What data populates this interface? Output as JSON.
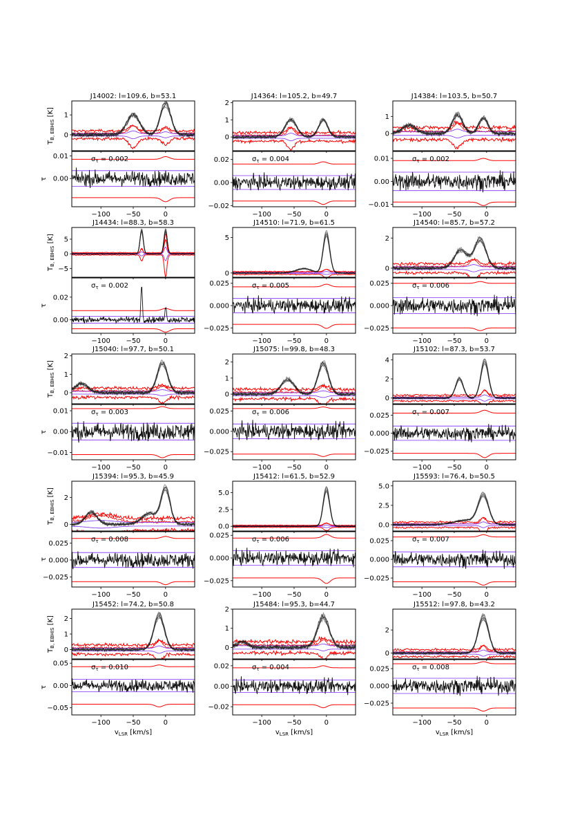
{
  "figure": {
    "xlabel_main": "v",
    "xlabel_sub": "LSR",
    "xlabel_unit": "[km/s]",
    "ylabel_top_main": "T",
    "ylabel_top_sub": "B, EBHIS",
    "ylabel_top_unit": "[K]",
    "ylabel_bottom": "τ",
    "sigma_symbol": "σ",
    "sigma_sub": "τ"
  },
  "colors": {
    "emission": "#111111",
    "envelope": "#ff0000",
    "reference": "#7b2cf5",
    "axes": "#000000"
  },
  "chart_data": [
    {
      "type": "line",
      "id": "J14002",
      "title": "J14002: l=109.6, b=53.1",
      "sigma_tau": "0.002",
      "xlim": [
        -145,
        45
      ],
      "xticks": [
        -100,
        -50,
        0
      ],
      "top": {
        "ylim": [
          -0.8,
          1.7
        ],
        "yticks": [
          0,
          1
        ],
        "yticklabels": [
          "0",
          "1"
        ],
        "peaks": [
          [
            -50,
            1.0,
            10
          ],
          [
            0,
            1.55,
            8
          ]
        ],
        "noise": 0.07,
        "redfeat": [
          [
            -50,
            0.45,
            6
          ],
          [
            0,
            0.3,
            5
          ]
        ],
        "envelope": 0.2
      },
      "bottom": {
        "ylim": [
          -0.0125,
          0.012
        ],
        "yticks": [
          0.01,
          0.0
        ],
        "yticklabels": [
          "0.01",
          "0.00"
        ],
        "noise": 0.0028,
        "envelope": 0.0085,
        "dipdepth": 0.0012,
        "ref": 0.0035
      }
    },
    {
      "type": "line",
      "id": "J14364",
      "title": "J14364: l=105.2, b=49.7",
      "sigma_tau": "0.004",
      "xlim": [
        -145,
        45
      ],
      "xticks": [
        -100,
        -50,
        0
      ],
      "top": {
        "ylim": [
          -0.8,
          2.1
        ],
        "yticks": [
          0,
          1,
          2
        ],
        "yticklabels": [
          "0",
          "1",
          "2"
        ],
        "peaks": [
          [
            -55,
            1.0,
            9
          ],
          [
            -5,
            1.0,
            7
          ]
        ],
        "noise": 0.06,
        "redfeat": [
          [
            -55,
            0.5,
            5
          ]
        ],
        "envelope": 0.25
      },
      "bottom": {
        "ylim": [
          -0.021,
          0.027
        ],
        "yticks": [
          0.02,
          0.0,
          -0.02
        ],
        "yticklabels": [
          "0.02",
          "0.00",
          "−0.02"
        ],
        "noise": 0.005,
        "envelope": 0.016,
        "dipdepth": 0.002,
        "ref": 0.006
      }
    },
    {
      "type": "line",
      "id": "J14384",
      "title": "J14384: l=103.5, b=50.7",
      "sigma_tau": "0.002",
      "xlim": [
        -145,
        45
      ],
      "xticks": [
        -100,
        -50,
        0
      ],
      "top": {
        "ylim": [
          -1.0,
          1.9
        ],
        "yticks": [
          0,
          1
        ],
        "yticklabels": [
          "0",
          "1"
        ],
        "peaks": [
          [
            -120,
            0.5,
            10
          ],
          [
            -45,
            1.1,
            8
          ],
          [
            -5,
            0.9,
            7
          ]
        ],
        "noise": 0.08,
        "redfeat": [
          [
            -45,
            0.5,
            6
          ]
        ],
        "envelope": 0.35
      },
      "bottom": {
        "ylim": [
          -0.011,
          0.013
        ],
        "yticks": [
          0.01,
          0.0,
          -0.01
        ],
        "yticklabels": [
          "0.01",
          "0.00",
          "−0.01"
        ],
        "noise": 0.003,
        "envelope": 0.009,
        "dipdepth": 0.001,
        "ref": 0.004
      }
    },
    {
      "type": "line",
      "id": "J14434",
      "title": "J14434: l=88.3, b=58.3",
      "sigma_tau": "0.002",
      "xlim": [
        -145,
        45
      ],
      "xticks": [
        -100,
        -50,
        0
      ],
      "top": {
        "ylim": [
          -8.0,
          9.0
        ],
        "yticks": [
          5,
          0,
          -5
        ],
        "yticklabels": [
          "5",
          "0",
          "−5"
        ],
        "peaks": [
          [
            -37,
            8.0,
            2.5
          ],
          [
            0,
            8.0,
            2.5
          ]
        ],
        "noise": 0.1,
        "redfeat": [
          [
            -37,
            2.0,
            2
          ],
          [
            0,
            7.5,
            2
          ]
        ],
        "envelope": 0.4
      },
      "bottom": {
        "ylim": [
          -0.012,
          0.037
        ],
        "yticks": [
          0.02,
          0.0
        ],
        "yticklabels": [
          "0.02",
          "0.00"
        ],
        "noise": 0.0022,
        "envelope": 0.008,
        "dipdepth": 0.002,
        "ref": 0.003,
        "spikes": [
          [
            -37,
            0.03
          ],
          [
            0,
            0.012
          ]
        ]
      }
    },
    {
      "type": "line",
      "id": "J14510",
      "title": "J14510: l=71.9, b=61.5",
      "sigma_tau": "0.005",
      "xlim": [
        -145,
        45
      ],
      "xticks": [
        -100,
        -50,
        0
      ],
      "top": {
        "ylim": [
          -0.6,
          6.4
        ],
        "yticks": [
          0,
          5
        ],
        "yticklabels": [
          "0",
          "5"
        ],
        "peaks": [
          [
            -35,
            0.6,
            12
          ],
          [
            0,
            5.5,
            5
          ]
        ],
        "noise": 0.06,
        "redfeat": [
          [
            0,
            0.5,
            4
          ]
        ],
        "envelope": 0.2
      },
      "bottom": {
        "ylim": [
          -0.031,
          0.031
        ],
        "yticks": [
          0.025,
          0.0,
          -0.025
        ],
        "yticklabels": [
          "0.025",
          "0.000",
          "−0.025"
        ],
        "noise": 0.0065,
        "envelope": 0.021,
        "dipdepth": 0.003,
        "ref": 0.008
      }
    },
    {
      "type": "line",
      "id": "J14540",
      "title": "J14540: l=85.7, b=57.2",
      "sigma_tau": "0.006",
      "xlim": [
        -145,
        45
      ],
      "xticks": [
        -100,
        -50,
        0
      ],
      "top": {
        "ylim": [
          -0.6,
          2.7
        ],
        "yticks": [
          0,
          2
        ],
        "yticklabels": [
          "0",
          "2"
        ],
        "peaks": [
          [
            -40,
            1.2,
            10
          ],
          [
            -10,
            1.9,
            9
          ]
        ],
        "noise": 0.07,
        "redfeat": [
          [
            -20,
            0.5,
            6
          ]
        ],
        "envelope": 0.3
      },
      "bottom": {
        "ylim": [
          -0.031,
          0.031
        ],
        "yticks": [
          0.025,
          0.0,
          -0.025
        ],
        "yticklabels": [
          "0.025",
          "0.000",
          "−0.025"
        ],
        "noise": 0.0075,
        "envelope": 0.025,
        "dipdepth": 0.002,
        "ref": 0.009
      }
    },
    {
      "type": "line",
      "id": "J15040",
      "title": "J15040: l=97.7, b=50.1",
      "sigma_tau": "0.003",
      "xlim": [
        -145,
        45
      ],
      "xticks": [
        -100,
        -50,
        0
      ],
      "top": {
        "ylim": [
          -0.6,
          2.1
        ],
        "yticks": [
          0,
          1,
          2
        ],
        "yticklabels": [
          "0",
          "1",
          "2"
        ],
        "peaks": [
          [
            -130,
            0.5,
            10
          ],
          [
            -5,
            1.6,
            8
          ]
        ],
        "noise": 0.07,
        "redfeat": [
          [
            -5,
            0.3,
            6
          ]
        ],
        "envelope": 0.25
      },
      "bottom": {
        "ylim": [
          -0.0135,
          0.013
        ],
        "yticks": [
          0.01,
          0.0,
          -0.01
        ],
        "yticklabels": [
          "0.01",
          "0.00",
          "−0.01"
        ],
        "noise": 0.0035,
        "envelope": 0.011,
        "dipdepth": 0.001,
        "ref": 0.004
      }
    },
    {
      "type": "line",
      "id": "J15075",
      "title": "J15075: l=99.8, b=48.3",
      "sigma_tau": "0.006",
      "xlim": [
        -145,
        45
      ],
      "xticks": [
        -100,
        -50,
        0
      ],
      "top": {
        "ylim": [
          -0.6,
          2.5
        ],
        "yticks": [
          0,
          1,
          2
        ],
        "yticklabels": [
          "0",
          "1",
          "2"
        ],
        "peaks": [
          [
            -60,
            0.9,
            10
          ],
          [
            -5,
            1.9,
            8
          ]
        ],
        "noise": 0.07,
        "redfeat": [
          [
            -5,
            0.4,
            6
          ]
        ],
        "envelope": 0.3
      },
      "bottom": {
        "ylim": [
          -0.035,
          0.033
        ],
        "yticks": [
          0.025,
          0.0,
          -0.025
        ],
        "yticklabels": [
          "0.025",
          "0.000",
          "−0.025"
        ],
        "noise": 0.008,
        "envelope": 0.028,
        "dipdepth": 0.002,
        "ref": 0.009
      }
    },
    {
      "type": "line",
      "id": "J15102",
      "title": "J15102: l=87.3, b=53.7",
      "sigma_tau": "0.007",
      "xlim": [
        -145,
        45
      ],
      "xticks": [
        -100,
        -50,
        0
      ],
      "top": {
        "ylim": [
          -0.6,
          4.6
        ],
        "yticks": [
          0,
          2,
          4
        ],
        "yticklabels": [
          "0",
          "2",
          "4"
        ],
        "peaks": [
          [
            -42,
            2.0,
            6
          ],
          [
            -3,
            3.8,
            6
          ]
        ],
        "noise": 0.06,
        "redfeat": [
          [
            -3,
            0.8,
            4
          ]
        ],
        "envelope": 0.3
      },
      "bottom": {
        "ylim": [
          -0.037,
          0.04
        ],
        "yticks": [
          0.025,
          0.0,
          -0.025
        ],
        "yticklabels": [
          "0.025",
          "0.000",
          "−0.025"
        ],
        "noise": 0.008,
        "envelope": 0.028,
        "dipdepth": 0.004,
        "ref": 0.01
      }
    },
    {
      "type": "line",
      "id": "J15394",
      "title": "J15394: l=95.3, b=45.9",
      "sigma_tau": "0.008",
      "xlim": [
        -145,
        45
      ],
      "xticks": [
        -100,
        -50,
        0
      ],
      "top": {
        "ylim": [
          -0.5,
          3.2
        ],
        "yticks": [
          0,
          2
        ],
        "yticklabels": [
          "0",
          "2"
        ],
        "peaks": [
          [
            -115,
            0.9,
            9
          ],
          [
            -25,
            0.8,
            12
          ],
          [
            0,
            2.6,
            7
          ]
        ],
        "noise": 0.08,
        "redfeat": [
          [
            -100,
            0.5,
            20
          ]
        ],
        "envelope": 0.45
      },
      "bottom": {
        "ylim": [
          -0.04,
          0.042
        ],
        "yticks": [
          0.025,
          0.0,
          -0.025
        ],
        "yticklabels": [
          "0.025",
          "0.000",
          "−0.025"
        ],
        "noise": 0.009,
        "envelope": 0.032,
        "dipdepth": 0.003,
        "ref": 0.011
      }
    },
    {
      "type": "line",
      "id": "J15412",
      "title": "J15412: l=61.5, b=52.9",
      "sigma_tau": "0.006",
      "xlim": [
        -145,
        45
      ],
      "xticks": [
        -100,
        -50,
        0
      ],
      "top": {
        "ylim": [
          -0.7,
          6.7
        ],
        "yticks": [
          0,
          2.5,
          5.0
        ],
        "yticklabels": [
          "0.0",
          "2.5",
          "5.0"
        ],
        "peaks": [
          [
            0,
            5.5,
            5
          ]
        ],
        "noise": 0.06,
        "redfeat": [
          [
            0,
            0.5,
            4
          ]
        ],
        "envelope": 0.15
      },
      "bottom": {
        "ylim": [
          -0.032,
          0.029
        ],
        "yticks": [
          0.025,
          0.0,
          -0.025
        ],
        "yticklabels": [
          "0.025",
          "0.000",
          "−0.025"
        ],
        "noise": 0.0065,
        "envelope": 0.022,
        "dipdepth": 0.004,
        "ref": 0.008
      }
    },
    {
      "type": "line",
      "id": "J15593",
      "title": "J15593: l=76.4, b=50.5",
      "sigma_tau": "0.007",
      "xlim": [
        -145,
        45
      ],
      "xticks": [
        -100,
        -50,
        0
      ],
      "top": {
        "ylim": [
          -0.8,
          5.6
        ],
        "yticks": [
          0,
          2.5,
          5.0
        ],
        "yticklabels": [
          "0.0",
          "2.5",
          "5.0"
        ],
        "peaks": [
          [
            -30,
            0.6,
            20
          ],
          [
            -5,
            3.6,
            8
          ]
        ],
        "noise": 0.07,
        "redfeat": [
          [
            -5,
            0.9,
            4
          ]
        ],
        "envelope": 0.35
      },
      "bottom": {
        "ylim": [
          -0.037,
          0.037
        ],
        "yticks": [
          0.025,
          0.0,
          -0.025
        ],
        "yticklabels": [
          "0.025",
          "0.000",
          "−0.025"
        ],
        "noise": 0.008,
        "envelope": 0.03,
        "dipdepth": 0.003,
        "ref": 0.01
      }
    },
    {
      "type": "line",
      "id": "J15452",
      "title": "J15452: l=74.2, b=50.8",
      "sigma_tau": "0.010",
      "xlim": [
        -145,
        45
      ],
      "xticks": [
        -100,
        -50,
        0
      ],
      "top": {
        "ylim": [
          -0.6,
          2.6
        ],
        "yticks": [
          0,
          1,
          2
        ],
        "yticklabels": [
          "0",
          "1",
          "2"
        ],
        "peaks": [
          [
            -10,
            2.2,
            8
          ]
        ],
        "noise": 0.07,
        "redfeat": [
          [
            -10,
            0.5,
            5
          ]
        ],
        "envelope": 0.3
      },
      "bottom": {
        "ylim": [
          -0.066,
          0.058
        ],
        "yticks": [
          0.05,
          0.0,
          -0.05
        ],
        "yticklabels": [
          "0.05",
          "0.00",
          "−0.05"
        ],
        "noise": 0.011,
        "envelope": 0.042,
        "dipdepth": 0.004,
        "ref": 0.014
      }
    },
    {
      "type": "line",
      "id": "J15484",
      "title": "J15484: l=95.3, b=44.7",
      "sigma_tau": "0.004",
      "xlim": [
        -145,
        45
      ],
      "xticks": [
        -100,
        -50,
        0
      ],
      "top": {
        "ylim": [
          -0.6,
          2.0
        ],
        "yticks": [
          0,
          1,
          2
        ],
        "yticklabels": [
          "0",
          "1",
          "2"
        ],
        "peaks": [
          [
            -130,
            0.3,
            8
          ],
          [
            -5,
            1.6,
            9
          ]
        ],
        "noise": 0.08,
        "redfeat": [
          [
            -5,
            0.3,
            5
          ]
        ],
        "envelope": 0.3
      },
      "bottom": {
        "ylim": [
          -0.028,
          0.026
        ],
        "yticks": [
          0.02,
          0.0,
          -0.02
        ],
        "yticklabels": [
          "0.02",
          "0.00",
          "−0.02"
        ],
        "noise": 0.0055,
        "envelope": 0.018,
        "dipdepth": 0.002,
        "ref": 0.006
      }
    },
    {
      "type": "line",
      "id": "J15512",
      "title": "J15512: l=97.8, b=43.2",
      "sigma_tau": "0.008",
      "xlim": [
        -145,
        45
      ],
      "xticks": [
        -100,
        -50,
        0
      ],
      "top": {
        "ylim": [
          -0.5,
          3.8
        ],
        "yticks": [
          0,
          2
        ],
        "yticklabels": [
          "0",
          "2"
        ],
        "peaks": [
          [
            -5,
            3.1,
            8
          ]
        ],
        "noise": 0.07,
        "redfeat": [
          [
            -5,
            0.6,
            4
          ]
        ],
        "envelope": 0.3
      },
      "bottom": {
        "ylim": [
          -0.042,
          0.038
        ],
        "yticks": [
          0.025,
          0.0,
          -0.025
        ],
        "yticklabels": [
          "0.025",
          "0.000",
          "−0.025"
        ],
        "noise": 0.009,
        "envelope": 0.032,
        "dipdepth": 0.003,
        "ref": 0.011
      }
    }
  ]
}
